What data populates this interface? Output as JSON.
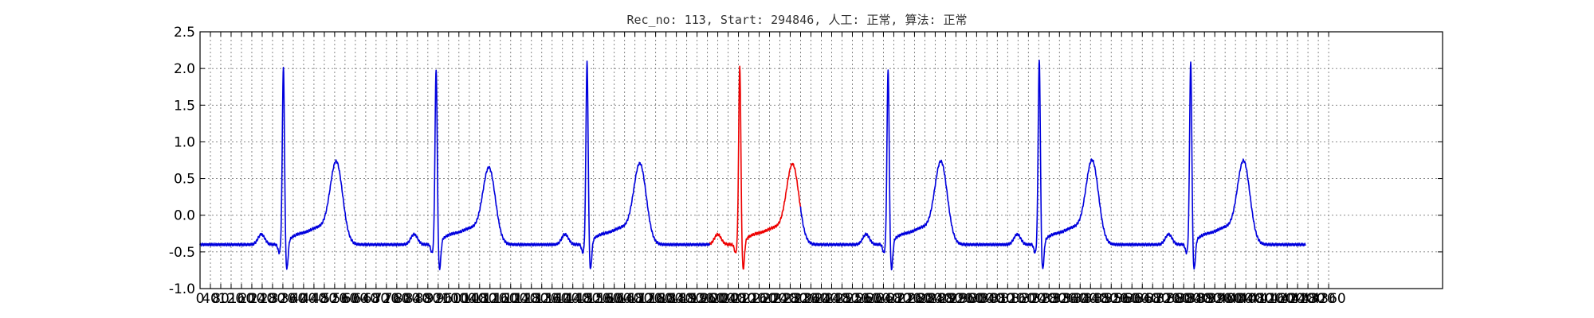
{
  "chart_data": {
    "type": "line",
    "title": "Rec_no: 113, Start: 294846, 人工: 正常, 算法: 正常",
    "xlabel": "",
    "ylabel": "",
    "xlim": [
      0,
      4800
    ],
    "ylim": [
      -1.0,
      2.5
    ],
    "grid": true,
    "x_tick_step": 40,
    "x_tick_label_max": 4360,
    "y_ticks": [
      "-1.0",
      "-0.5",
      "0.0",
      "0.5",
      "1.0",
      "1.5",
      "2.0",
      "2.5"
    ],
    "beat_period": 580,
    "series": [
      {
        "color": "#0000dd",
        "x_range": [
          0,
          1970
        ],
        "beats": [
          0,
          1,
          2
        ]
      },
      {
        "color": "#ee0000",
        "x_range": [
          1970,
          2320
        ],
        "beats": [
          3
        ]
      },
      {
        "color": "#0000dd",
        "x_range": [
          2320,
          4270
        ],
        "beats": [
          4,
          5,
          6
        ]
      }
    ],
    "beat_waveform": {
      "baseline": -0.4,
      "r_peak_x": [
        322,
        912,
        1495,
        2085,
        2658,
        3242,
        3827
      ],
      "r_peak_y": [
        2.0,
        1.98,
        2.07,
        2.02,
        1.98,
        2.1,
        2.07
      ],
      "t_peak_y": [
        0.8,
        0.71,
        0.77,
        0.76,
        0.8,
        0.82,
        0.81
      ]
    }
  }
}
